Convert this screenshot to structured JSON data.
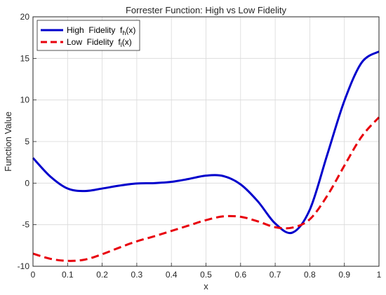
{
  "chart_data": {
    "type": "line",
    "title": "Forrester Function: High vs Low Fidelity",
    "xlabel": "x",
    "ylabel": "Function Value",
    "xlim": [
      0,
      1
    ],
    "ylim": [
      -10,
      20
    ],
    "xticks": [
      0,
      0.1,
      0.2,
      0.3,
      0.4,
      0.5,
      0.6,
      0.7,
      0.8,
      0.9,
      1
    ],
    "xtick_labels": [
      "0",
      "0.1",
      "0.2",
      "0.3",
      "0.4",
      "0.5",
      "0.6",
      "0.7",
      "0.8",
      "0.9",
      "1"
    ],
    "yticks": [
      -10,
      -5,
      0,
      5,
      10,
      15,
      20
    ],
    "ytick_labels": [
      "-10",
      "-5",
      "0",
      "5",
      "10",
      "15",
      "20"
    ],
    "grid": true,
    "legend_position": "top-left",
    "x": [
      0,
      0.05,
      0.1,
      0.15,
      0.2,
      0.25,
      0.3,
      0.35,
      0.4,
      0.45,
      0.5,
      0.55,
      0.6,
      0.65,
      0.7,
      0.75,
      0.8,
      0.85,
      0.9,
      0.95,
      1
    ],
    "series": [
      {
        "name_main": "High  Fidelity  f",
        "name_sub": "h",
        "name_tail": "(x)",
        "color": "#0000cc",
        "style": "solid",
        "values": [
          3.03,
          0.8,
          -0.65,
          -0.95,
          -0.65,
          -0.3,
          -0.05,
          0.0,
          0.15,
          0.5,
          0.9,
          0.85,
          -0.15,
          -2.2,
          -4.85,
          -5.95,
          -3.2,
          3.35,
          9.9,
          14.5,
          15.83
        ]
      },
      {
        "name_main": "Low  Fidelity  f",
        "name_sub": "l",
        "name_tail": "(x)",
        "color": "#e8000b",
        "style": "dashed",
        "values": [
          -8.48,
          -9.1,
          -9.35,
          -9.2,
          -8.55,
          -7.75,
          -7.0,
          -6.4,
          -5.75,
          -5.1,
          -4.45,
          -4.0,
          -4.05,
          -4.6,
          -5.3,
          -5.35,
          -4.35,
          -1.55,
          2.1,
          5.6,
          7.92
        ]
      }
    ]
  }
}
